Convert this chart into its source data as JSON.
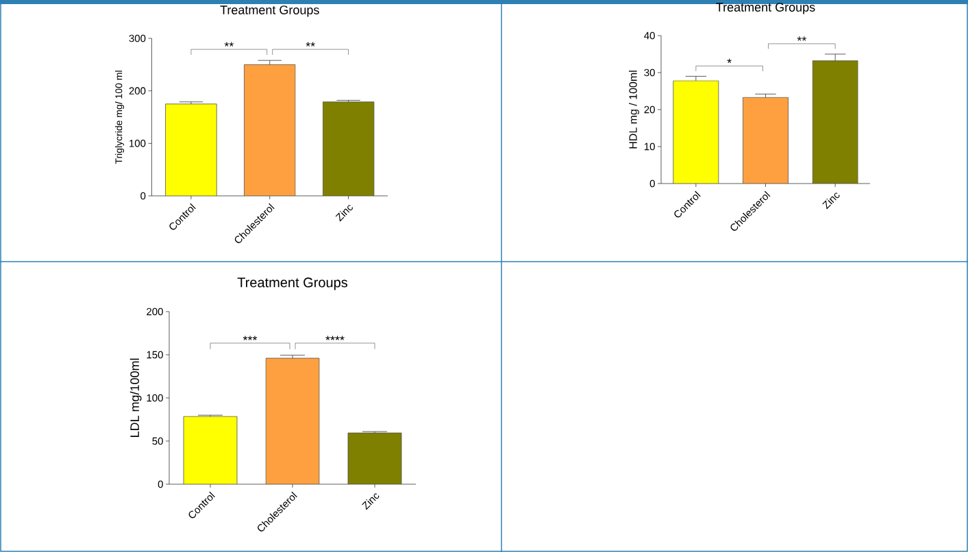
{
  "chart_data": [
    {
      "type": "bar",
      "title": "Treatment Groups",
      "ylabel": "Triglycride mg/ 100 ml",
      "categories": [
        "Control",
        "Cholesterol",
        "Zinc"
      ],
      "values": [
        175,
        250,
        179
      ],
      "errors": [
        4,
        8,
        3
      ],
      "colors": [
        "#ffff00",
        "#ffa040",
        "#808000"
      ],
      "ylim": [
        0,
        300
      ],
      "yticks": [
        0,
        100,
        200,
        300
      ],
      "annotations": [
        "**",
        "**"
      ]
    },
    {
      "type": "bar",
      "title": "Treatment Groups",
      "ylabel": "HDL mg / 100ml",
      "categories": [
        "Control",
        "Cholesterol",
        "Zinc"
      ],
      "values": [
        27.8,
        23.3,
        33.2
      ],
      "errors": [
        1.2,
        0.9,
        1.8
      ],
      "colors": [
        "#ffff00",
        "#ffa040",
        "#808000"
      ],
      "ylim": [
        0,
        40
      ],
      "yticks": [
        0,
        10,
        20,
        30,
        40
      ],
      "annotations": [
        "*",
        "**"
      ]
    },
    {
      "type": "bar",
      "title": "Treatment Groups",
      "ylabel": "LDL mg/100ml",
      "categories": [
        "Control",
        "Cholesterol",
        "Zinc"
      ],
      "values": [
        78.5,
        146,
        59.5
      ],
      "errors": [
        1.5,
        3.5,
        1.5
      ],
      "colors": [
        "#ffff00",
        "#ffa040",
        "#808000"
      ],
      "ylim": [
        0,
        200
      ],
      "yticks": [
        0,
        50,
        100,
        150,
        200
      ],
      "annotations": [
        "***",
        "****"
      ]
    }
  ]
}
